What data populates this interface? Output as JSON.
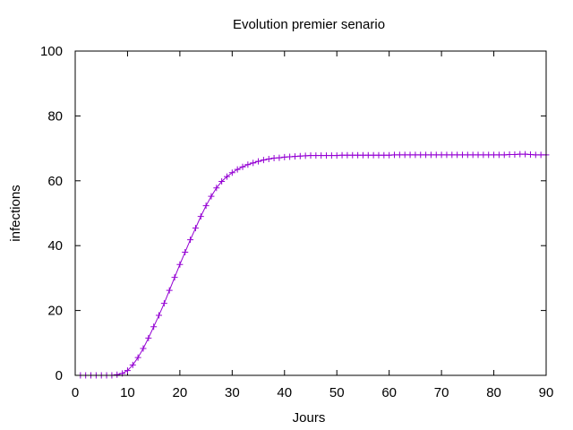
{
  "chart_data": {
    "type": "line",
    "title": "Evolution premier senario",
    "xlabel": "Jours",
    "ylabel": "infections",
    "xlim": [
      0,
      90
    ],
    "ylim": [
      0,
      100
    ],
    "xticks": [
      "0",
      "10",
      "20",
      "30",
      "40",
      "50",
      "60",
      "70",
      "80",
      "90"
    ],
    "yticks": [
      "0",
      "20",
      "40",
      "60",
      "80",
      "100"
    ],
    "grid": false,
    "legend": "none",
    "marker": "plus",
    "series": [
      {
        "color": "#9400d3",
        "x": [
          1,
          2,
          3,
          4,
          5,
          6,
          7,
          8,
          9,
          10,
          11,
          12,
          13,
          14,
          15,
          16,
          17,
          18,
          19,
          20,
          21,
          22,
          23,
          24,
          25,
          26,
          27,
          28,
          29,
          30,
          31,
          32,
          33,
          34,
          35,
          36,
          37,
          38,
          39,
          40,
          41,
          42,
          43,
          44,
          45,
          46,
          47,
          48,
          49,
          50,
          51,
          52,
          53,
          54,
          55,
          56,
          57,
          58,
          59,
          60,
          61,
          62,
          63,
          64,
          65,
          66,
          67,
          68,
          69,
          70,
          71,
          72,
          73,
          74,
          75,
          76,
          77,
          78,
          79,
          80,
          81,
          82,
          83,
          84,
          85,
          86,
          87,
          88,
          89,
          90
        ],
        "y": [
          0,
          0,
          0,
          0,
          0,
          0,
          0,
          0.2,
          0.6,
          1.5,
          3.2,
          5.5,
          8.3,
          11.5,
          15,
          18.5,
          22.2,
          26.2,
          30.2,
          34.2,
          38,
          41.8,
          45.4,
          49,
          52.3,
          55.2,
          57.8,
          59.8,
          61.3,
          62.5,
          63.5,
          64.3,
          65,
          65.5,
          66,
          66.4,
          66.7,
          67,
          67.1,
          67.3,
          67.4,
          67.5,
          67.6,
          67.7,
          67.8,
          67.8,
          67.8,
          67.8,
          67.8,
          67.8,
          67.9,
          67.9,
          67.9,
          67.9,
          67.9,
          67.9,
          67.9,
          67.9,
          67.9,
          67.9,
          68,
          68,
          68,
          68,
          68,
          68,
          68,
          68,
          68,
          68,
          68,
          68,
          68,
          68,
          68,
          68,
          68,
          68,
          68,
          68,
          68,
          68,
          68.1,
          68.1,
          68.2,
          68.2,
          68.1,
          68,
          68,
          68
        ]
      }
    ]
  }
}
